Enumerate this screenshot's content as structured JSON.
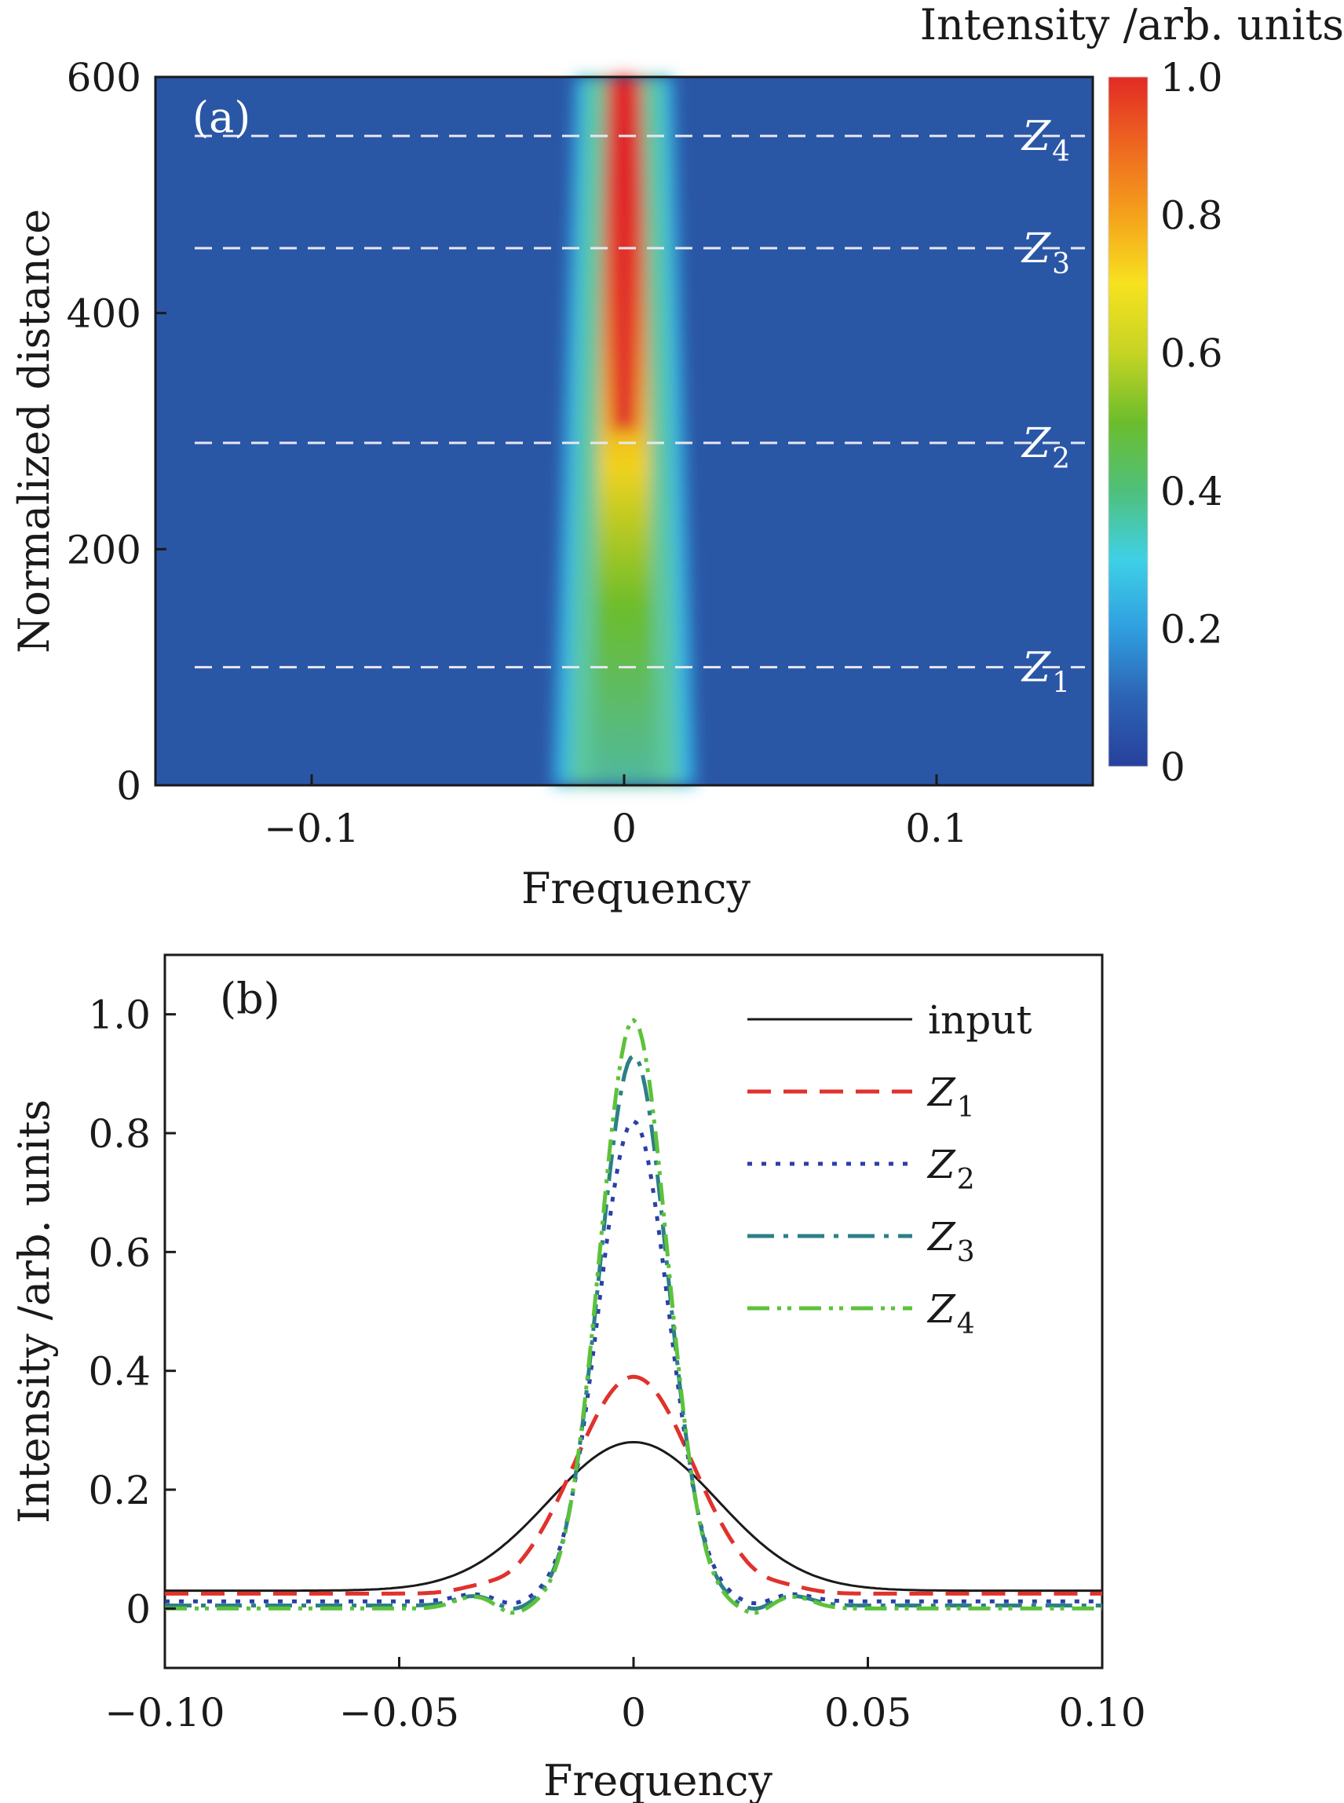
{
  "chart_data": [
    {
      "panel": "(a)",
      "type": "heatmap",
      "xlabel": "Frequency",
      "ylabel": "Normalized distance",
      "xlim": [
        -0.15,
        0.15
      ],
      "ylim": [
        0,
        600
      ],
      "xticks": [
        -0.1,
        0,
        0.1
      ],
      "xtick_labels": [
        "−0.1",
        "0",
        "0.1"
      ],
      "yticks": [
        0,
        200,
        400,
        600
      ],
      "ytick_labels": [
        "0",
        "200",
        "400",
        "600"
      ],
      "colorbar": {
        "title": "Intensity /arb. units",
        "ticks": [
          0,
          0.2,
          0.4,
          0.6,
          0.8,
          1.0
        ],
        "tick_labels": [
          "0",
          "0.2",
          "0.4",
          "0.6",
          "0.8",
          "1.0"
        ],
        "range": [
          0,
          1.0
        ],
        "colormap": [
          "#27409c",
          "#2d63b5",
          "#2f9fe0",
          "#3fd0e6",
          "#4fc07a",
          "#6cbd2c",
          "#c6d424",
          "#f7e21f",
          "#f5a11b",
          "#ee6720",
          "#e22a24"
        ]
      },
      "background_color": "#2a56a6",
      "markers": [
        {
          "name": "Z",
          "sub": "1",
          "distance": 100
        },
        {
          "name": "Z",
          "sub": "2",
          "distance": 290
        },
        {
          "name": "Z",
          "sub": "3",
          "distance": 455
        },
        {
          "name": "Z",
          "sub": "4",
          "distance": 550
        }
      ]
    },
    {
      "panel": "(b)",
      "type": "line",
      "xlabel": "Frequency",
      "ylabel": "Intensity /arb. units",
      "xlim": [
        -0.1,
        0.1
      ],
      "ylim": [
        -0.1,
        1.1
      ],
      "xticks": [
        -0.1,
        -0.05,
        0,
        0.05,
        0.1
      ],
      "xtick_labels": [
        "−0.10",
        "−0.05",
        "0",
        "0.05",
        "0.10"
      ],
      "yticks": [
        0,
        0.2,
        0.4,
        0.6,
        0.8,
        1.0
      ],
      "ytick_labels": [
        "0",
        "0.2",
        "0.4",
        "0.6",
        "0.8",
        "1.0"
      ],
      "series": [
        {
          "name": "input",
          "sub": "",
          "color": "#1a1a1a",
          "dash": "",
          "peak": 0.28,
          "width": 0.018,
          "base": 0.03,
          "ripple": 0
        },
        {
          "name": "Z",
          "sub": "1",
          "color": "#e0322c",
          "dash": "30 16",
          "peak": 0.39,
          "width": 0.0125,
          "base": 0.025,
          "ripple": 0.005
        },
        {
          "name": "Z",
          "sub": "2",
          "color": "#2a3fa8",
          "dash": "6 12",
          "peak": 0.82,
          "width": 0.0075,
          "base": 0.012,
          "ripple": 0.012
        },
        {
          "name": "Z",
          "sub": "3",
          "color": "#2d7f87",
          "dash": "34 12 6 12",
          "peak": 0.93,
          "width": 0.0073,
          "base": 0.005,
          "ripple": 0.016
        },
        {
          "name": "Z",
          "sub": "4",
          "color": "#5cc23a",
          "dash": "28 10 5 8 5 10",
          "peak": 0.99,
          "width": 0.0072,
          "base": 0.0,
          "ripple": 0.02
        }
      ]
    }
  ]
}
